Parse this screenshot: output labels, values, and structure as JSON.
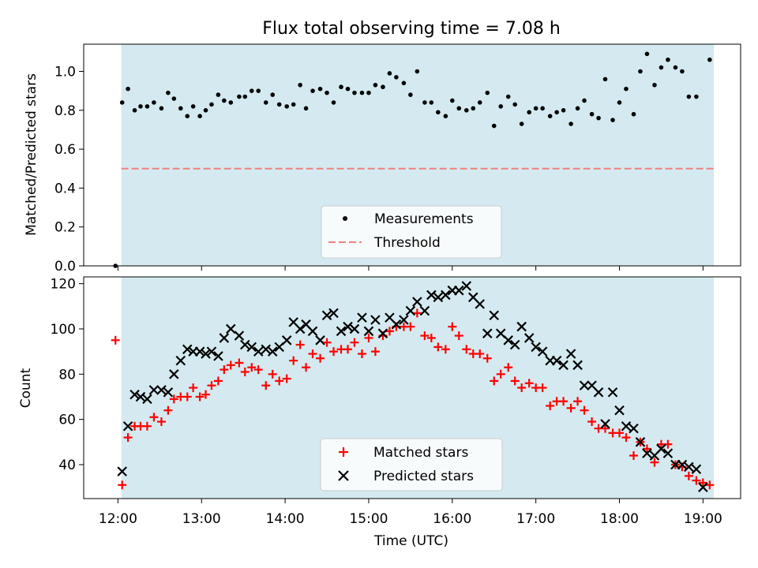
{
  "figure": {
    "title": "Flux total observing time = 7.08 h"
  },
  "chart_data": [
    {
      "type": "scatter",
      "ylabel": "Matched/Predicted stars",
      "ylim": [
        0.0,
        1.14
      ],
      "yticks": [
        0.0,
        0.2,
        0.4,
        0.6,
        0.8,
        1.0
      ],
      "ytick_labels": [
        "0.0",
        "0.2",
        "0.4",
        "0.6",
        "0.8",
        "1.0"
      ],
      "xlim_hours": [
        11.59,
        19.45
      ],
      "observing_window_hours": [
        12.04,
        19.13
      ],
      "window_color": "#d4eaf0",
      "legend_position": "lower-center",
      "threshold": {
        "name": "Threshold",
        "value": 0.5,
        "color": "#f08080",
        "style": "dashed"
      },
      "series": [
        {
          "name": "Measurements",
          "marker": "dot",
          "color": "#000000",
          "points": [
            [
              11.97,
              0.0
            ],
            [
              12.05,
              0.84
            ],
            [
              12.12,
              0.91
            ],
            [
              12.2,
              0.8
            ],
            [
              12.27,
              0.82
            ],
            [
              12.35,
              0.82
            ],
            [
              12.43,
              0.84
            ],
            [
              12.52,
              0.81
            ],
            [
              12.6,
              0.89
            ],
            [
              12.67,
              0.86
            ],
            [
              12.75,
              0.81
            ],
            [
              12.83,
              0.77
            ],
            [
              12.9,
              0.82
            ],
            [
              12.98,
              0.77
            ],
            [
              13.05,
              0.8
            ],
            [
              13.12,
              0.83
            ],
            [
              13.2,
              0.88
            ],
            [
              13.27,
              0.85
            ],
            [
              13.35,
              0.84
            ],
            [
              13.45,
              0.87
            ],
            [
              13.52,
              0.87
            ],
            [
              13.6,
              0.9
            ],
            [
              13.68,
              0.9
            ],
            [
              13.77,
              0.84
            ],
            [
              13.85,
              0.88
            ],
            [
              13.93,
              0.83
            ],
            [
              14.02,
              0.82
            ],
            [
              14.1,
              0.83
            ],
            [
              14.18,
              0.93
            ],
            [
              14.25,
              0.81
            ],
            [
              14.33,
              0.9
            ],
            [
              14.42,
              0.91
            ],
            [
              14.5,
              0.89
            ],
            [
              14.58,
              0.84
            ],
            [
              14.67,
              0.92
            ],
            [
              14.75,
              0.91
            ],
            [
              14.83,
              0.89
            ],
            [
              14.92,
              0.89
            ],
            [
              15.0,
              0.89
            ],
            [
              15.08,
              0.93
            ],
            [
              15.17,
              0.92
            ],
            [
              15.25,
              0.99
            ],
            [
              15.33,
              0.97
            ],
            [
              15.42,
              0.94
            ],
            [
              15.5,
              0.88
            ],
            [
              15.58,
              1.0
            ],
            [
              15.67,
              0.84
            ],
            [
              15.75,
              0.84
            ],
            [
              15.83,
              0.79
            ],
            [
              15.92,
              0.77
            ],
            [
              16.0,
              0.85
            ],
            [
              16.08,
              0.81
            ],
            [
              16.17,
              0.8
            ],
            [
              16.25,
              0.81
            ],
            [
              16.33,
              0.84
            ],
            [
              16.42,
              0.89
            ],
            [
              16.5,
              0.72
            ],
            [
              16.58,
              0.82
            ],
            [
              16.67,
              0.87
            ],
            [
              16.75,
              0.83
            ],
            [
              16.83,
              0.73
            ],
            [
              16.92,
              0.79
            ],
            [
              17.0,
              0.81
            ],
            [
              17.08,
              0.81
            ],
            [
              17.17,
              0.77
            ],
            [
              17.25,
              0.79
            ],
            [
              17.33,
              0.8
            ],
            [
              17.42,
              0.73
            ],
            [
              17.5,
              0.81
            ],
            [
              17.58,
              0.85
            ],
            [
              17.67,
              0.78
            ],
            [
              17.75,
              0.76
            ],
            [
              17.83,
              0.96
            ],
            [
              17.92,
              0.75
            ],
            [
              18.0,
              0.84
            ],
            [
              18.08,
              0.91
            ],
            [
              18.17,
              0.78
            ],
            [
              18.25,
              1.0
            ],
            [
              18.33,
              1.09
            ],
            [
              18.42,
              0.93
            ],
            [
              18.5,
              1.02
            ],
            [
              18.58,
              1.06
            ],
            [
              18.67,
              1.02
            ],
            [
              18.75,
              1.0
            ],
            [
              18.83,
              0.87
            ],
            [
              18.92,
              0.87
            ],
            [
              19.08,
              1.06
            ]
          ]
        }
      ]
    },
    {
      "type": "scatter",
      "xlabel": "Time (UTC)",
      "ylabel": "Count",
      "ylim": [
        25,
        123
      ],
      "yticks": [
        40,
        60,
        80,
        100,
        120
      ],
      "ytick_labels": [
        "40",
        "60",
        "80",
        "100",
        "120"
      ],
      "xlim_hours": [
        11.59,
        19.45
      ],
      "xticks_hours": [
        12,
        13,
        14,
        15,
        16,
        17,
        18,
        19
      ],
      "xtick_labels": [
        "12:00",
        "13:00",
        "14:00",
        "15:00",
        "16:00",
        "17:00",
        "18:00",
        "19:00"
      ],
      "observing_window_hours": [
        12.04,
        19.13
      ],
      "window_color": "#d4eaf0",
      "legend_position": "lower-center",
      "series": [
        {
          "name": "Matched stars",
          "marker": "plus",
          "color": "#ff0000",
          "points": [
            [
              11.97,
              95
            ],
            [
              12.05,
              31
            ],
            [
              12.12,
              52
            ],
            [
              12.2,
              57
            ],
            [
              12.27,
              57
            ],
            [
              12.35,
              57
            ],
            [
              12.43,
              61
            ],
            [
              12.52,
              59
            ],
            [
              12.6,
              64
            ],
            [
              12.67,
              69
            ],
            [
              12.75,
              70
            ],
            [
              12.83,
              70
            ],
            [
              12.9,
              74
            ],
            [
              12.98,
              70
            ],
            [
              13.05,
              71
            ],
            [
              13.12,
              75
            ],
            [
              13.2,
              77
            ],
            [
              13.27,
              82
            ],
            [
              13.35,
              84
            ],
            [
              13.45,
              85
            ],
            [
              13.52,
              81
            ],
            [
              13.6,
              83
            ],
            [
              13.68,
              82
            ],
            [
              13.77,
              75
            ],
            [
              13.85,
              80
            ],
            [
              13.93,
              77
            ],
            [
              14.02,
              78
            ],
            [
              14.1,
              86
            ],
            [
              14.18,
              93
            ],
            [
              14.25,
              83
            ],
            [
              14.33,
              89
            ],
            [
              14.42,
              87
            ],
            [
              14.5,
              94
            ],
            [
              14.58,
              90
            ],
            [
              14.67,
              91
            ],
            [
              14.75,
              91
            ],
            [
              14.83,
              94
            ],
            [
              14.92,
              89
            ],
            [
              15.0,
              96
            ],
            [
              15.08,
              90
            ],
            [
              15.17,
              97
            ],
            [
              15.25,
              99
            ],
            [
              15.33,
              101
            ],
            [
              15.42,
              101
            ],
            [
              15.5,
              101
            ],
            [
              15.58,
              107
            ],
            [
              15.67,
              97
            ],
            [
              15.75,
              96
            ],
            [
              15.83,
              92
            ],
            [
              15.92,
              91
            ],
            [
              16.0,
              101
            ],
            [
              16.08,
              97
            ],
            [
              16.17,
              91
            ],
            [
              16.25,
              89
            ],
            [
              16.33,
              89
            ],
            [
              16.42,
              87
            ],
            [
              16.5,
              77
            ],
            [
              16.58,
              80
            ],
            [
              16.67,
              83
            ],
            [
              16.75,
              77
            ],
            [
              16.83,
              74
            ],
            [
              16.92,
              76
            ],
            [
              17.0,
              74
            ],
            [
              17.08,
              74
            ],
            [
              17.17,
              66
            ],
            [
              17.25,
              68
            ],
            [
              17.33,
              68
            ],
            [
              17.42,
              65
            ],
            [
              17.5,
              68
            ],
            [
              17.58,
              64
            ],
            [
              17.67,
              59
            ],
            [
              17.75,
              56
            ],
            [
              17.83,
              56
            ],
            [
              17.92,
              54
            ],
            [
              18.0,
              54
            ],
            [
              18.08,
              52
            ],
            [
              18.17,
              44
            ],
            [
              18.25,
              50
            ],
            [
              18.33,
              47
            ],
            [
              18.42,
              41
            ],
            [
              18.5,
              49
            ],
            [
              18.58,
              49
            ],
            [
              18.67,
              40
            ],
            [
              18.75,
              39
            ],
            [
              18.83,
              35
            ],
            [
              18.92,
              33
            ],
            [
              19.0,
              32
            ],
            [
              19.08,
              31
            ]
          ]
        },
        {
          "name": "Predicted stars",
          "marker": "x",
          "color": "#000000",
          "points": [
            [
              12.05,
              37
            ],
            [
              12.12,
              57
            ],
            [
              12.2,
              71
            ],
            [
              12.27,
              70
            ],
            [
              12.35,
              69
            ],
            [
              12.43,
              73
            ],
            [
              12.52,
              73
            ],
            [
              12.6,
              72
            ],
            [
              12.67,
              80
            ],
            [
              12.75,
              86
            ],
            [
              12.83,
              91
            ],
            [
              12.9,
              90
            ],
            [
              12.98,
              90
            ],
            [
              13.05,
              89
            ],
            [
              13.12,
              90
            ],
            [
              13.2,
              88
            ],
            [
              13.27,
              96
            ],
            [
              13.35,
              100
            ],
            [
              13.45,
              97
            ],
            [
              13.52,
              93
            ],
            [
              13.6,
              92
            ],
            [
              13.68,
              90
            ],
            [
              13.77,
              91
            ],
            [
              13.85,
              90
            ],
            [
              13.93,
              92
            ],
            [
              14.02,
              95
            ],
            [
              14.1,
              103
            ],
            [
              14.18,
              100
            ],
            [
              14.25,
              102
            ],
            [
              14.33,
              99
            ],
            [
              14.42,
              95
            ],
            [
              14.5,
              106
            ],
            [
              14.58,
              107
            ],
            [
              14.67,
              99
            ],
            [
              14.75,
              101
            ],
            [
              14.83,
              100
            ],
            [
              14.92,
              105
            ],
            [
              15.0,
              99
            ],
            [
              15.08,
              104
            ],
            [
              15.17,
              98
            ],
            [
              15.25,
              105
            ],
            [
              15.33,
              102
            ],
            [
              15.42,
              104
            ],
            [
              15.5,
              108
            ],
            [
              15.58,
              112
            ],
            [
              15.67,
              108
            ],
            [
              15.75,
              115
            ],
            [
              15.83,
              114
            ],
            [
              15.92,
              115
            ],
            [
              16.0,
              117
            ],
            [
              16.08,
              117
            ],
            [
              16.17,
              119
            ],
            [
              16.25,
              114
            ],
            [
              16.33,
              111
            ],
            [
              16.42,
              98
            ],
            [
              16.5,
              106
            ],
            [
              16.58,
              98
            ],
            [
              16.67,
              95
            ],
            [
              16.75,
              93
            ],
            [
              16.83,
              101
            ],
            [
              16.92,
              96
            ],
            [
              17.0,
              92
            ],
            [
              17.08,
              90
            ],
            [
              17.17,
              86
            ],
            [
              17.25,
              86
            ],
            [
              17.33,
              84
            ],
            [
              17.42,
              89
            ],
            [
              17.5,
              84
            ],
            [
              17.58,
              75
            ],
            [
              17.67,
              75
            ],
            [
              17.75,
              72
            ],
            [
              17.83,
              58
            ],
            [
              17.92,
              72
            ],
            [
              18.0,
              64
            ],
            [
              18.08,
              57
            ],
            [
              18.17,
              56
            ],
            [
              18.25,
              50
            ],
            [
              18.33,
              45
            ],
            [
              18.42,
              44
            ],
            [
              18.5,
              47
            ],
            [
              18.58,
              45
            ],
            [
              18.67,
              40
            ],
            [
              18.75,
              40
            ],
            [
              18.83,
              39
            ],
            [
              18.92,
              38
            ],
            [
              19.0,
              30
            ]
          ]
        }
      ]
    }
  ]
}
